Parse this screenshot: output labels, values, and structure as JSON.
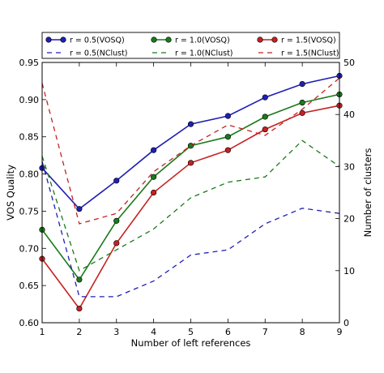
{
  "chart_data": {
    "type": "line",
    "xlabel": "Number of left references",
    "ylabel_left": "VOS Quality",
    "ylabel_right": "Number of clusters",
    "x": [
      1,
      2,
      3,
      4,
      5,
      6,
      7,
      8,
      9
    ],
    "xlim": [
      1,
      9
    ],
    "ylim_left": [
      0.6,
      0.95
    ],
    "ylim_right": [
      0,
      50
    ],
    "xticks": [
      "1",
      "2",
      "3",
      "4",
      "5",
      "6",
      "7",
      "8",
      "9"
    ],
    "yticks_left": [
      "0.60",
      "0.65",
      "0.70",
      "0.75",
      "0.80",
      "0.85",
      "0.90",
      "0.95"
    ],
    "yticks_right": [
      "0",
      "10",
      "20",
      "30",
      "40",
      "50"
    ],
    "legend_position": "top, above plot",
    "series": [
      {
        "name": "r = 0.5(VOSQ)",
        "r": "0.5",
        "kind": "VOSQ",
        "axis": "left",
        "color": "#1f1fb4",
        "style": "solid-marker",
        "values": [
          0.808,
          0.753,
          0.791,
          0.832,
          0.867,
          0.878,
          0.903,
          0.921,
          0.932
        ]
      },
      {
        "name": "r = 1.0(VOSQ)",
        "r": "1.0",
        "kind": "VOSQ",
        "axis": "left",
        "color": "#1b7a1b",
        "style": "solid-marker",
        "values": [
          0.725,
          0.658,
          0.737,
          0.796,
          0.838,
          0.85,
          0.877,
          0.896,
          0.907
        ]
      },
      {
        "name": "r = 1.5(VOSQ)",
        "r": "1.5",
        "kind": "VOSQ",
        "axis": "left",
        "color": "#c42222",
        "style": "solid-marker",
        "values": [
          0.686,
          0.619,
          0.707,
          0.775,
          0.815,
          0.832,
          0.86,
          0.882,
          0.892
        ]
      },
      {
        "name": "r = 0.5(NClust)",
        "r": "0.5",
        "kind": "NClust",
        "axis": "right",
        "color": "#1f1fb4",
        "style": "dashed",
        "values": [
          31,
          5,
          5,
          8,
          13,
          14,
          19,
          22,
          21
        ]
      },
      {
        "name": "r = 1.0(NClust)",
        "r": "1.0",
        "kind": "NClust",
        "axis": "right",
        "color": "#1b7a1b",
        "style": "dashed",
        "values": [
          32,
          10,
          14,
          18,
          24,
          27,
          28,
          35,
          30
        ]
      },
      {
        "name": "r = 1.5(NClust)",
        "r": "1.5",
        "kind": "NClust",
        "axis": "right",
        "color": "#c42222",
        "style": "dashed",
        "values": [
          46,
          19,
          21,
          29,
          34,
          38,
          36,
          41,
          47
        ]
      }
    ]
  }
}
